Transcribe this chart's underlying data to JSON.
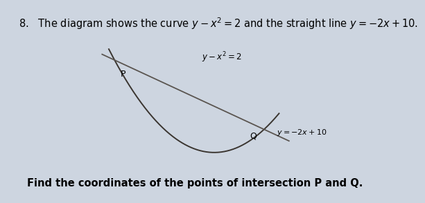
{
  "background_color": "#cdd5e0",
  "title_text": "8.   The diagram shows the curve $y - x^2 = 2$ and the straight line $y = -2x + 10$.",
  "title_fontsize": 10.5,
  "footer_text": "Find the coordinates of the points of intersection P and Q.",
  "footer_fontsize": 10.5,
  "curve_color": "#3a3530",
  "line_color": "#5a5550",
  "curve_label": "$y - x^2 = 2$",
  "line_label": "$y = -2x + 10$",
  "x_min": -3.0,
  "x_max": 4.5,
  "y_min": 1.5,
  "y_max": 14.0,
  "parabola_x_start": -2.6,
  "parabola_x_end": 2.8,
  "line_x_start": -2.8,
  "line_x_end": 4.2
}
